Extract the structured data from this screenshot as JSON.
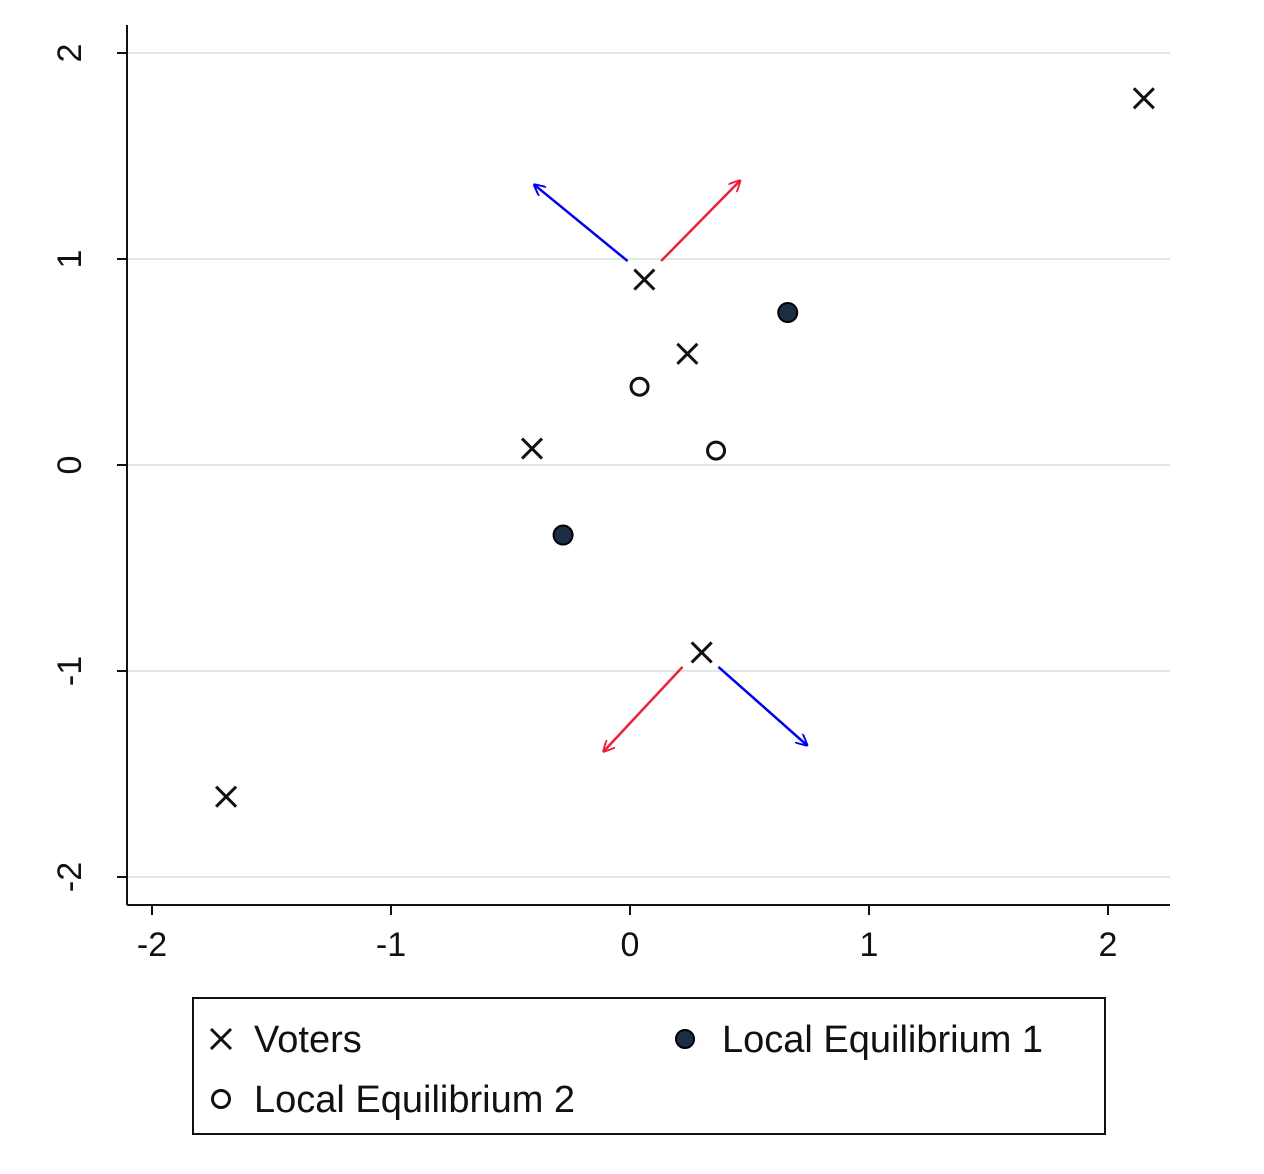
{
  "chart_data": {
    "type": "scatter",
    "xlim": [
      -2.1,
      2.25
    ],
    "ylim": [
      -2.12,
      2.12
    ],
    "xticks": [
      -2,
      -1,
      0,
      1,
      2
    ],
    "yticks": [
      -2,
      -1,
      0,
      1,
      2
    ],
    "xtick_labels": [
      "-2",
      "-1",
      "0",
      "1",
      "2"
    ],
    "ytick_labels": [
      "-2",
      "-1",
      "0",
      "1",
      "2"
    ],
    "grid": "horizontal",
    "legend_placement": "bottom",
    "series": [
      {
        "name": "Voters",
        "marker": "x",
        "color": "#111111",
        "points": [
          [
            2.15,
            1.78
          ],
          [
            0.06,
            0.9
          ],
          [
            0.24,
            0.54
          ],
          [
            -0.41,
            0.08
          ],
          [
            0.3,
            -0.91
          ],
          [
            -1.69,
            -1.61
          ]
        ]
      },
      {
        "name": "Local Equilibrium 1",
        "marker": "filled-circle",
        "color": "#1c2e45",
        "points": [
          [
            0.66,
            0.74
          ],
          [
            -0.28,
            -0.34
          ]
        ]
      },
      {
        "name": "Local Equilibrium 2",
        "marker": "hollow-circle",
        "color": "#111111",
        "points": [
          [
            0.04,
            0.38
          ],
          [
            0.36,
            0.07
          ]
        ]
      }
    ],
    "arrows": [
      {
        "from": [
          -0.01,
          0.99
        ],
        "to": [
          -0.4,
          1.36
        ],
        "color": "#0000ee"
      },
      {
        "from": [
          0.13,
          0.99
        ],
        "to": [
          0.46,
          1.38
        ],
        "color": "#e8213e"
      },
      {
        "from": [
          0.22,
          -0.98
        ],
        "to": [
          -0.11,
          -1.39
        ],
        "color": "#e8213e"
      },
      {
        "from": [
          0.37,
          -0.98
        ],
        "to": [
          0.74,
          -1.36
        ],
        "color": "#0000ee"
      }
    ],
    "colors": {
      "grid": "#dfe8e8",
      "axis": "#111111"
    }
  }
}
